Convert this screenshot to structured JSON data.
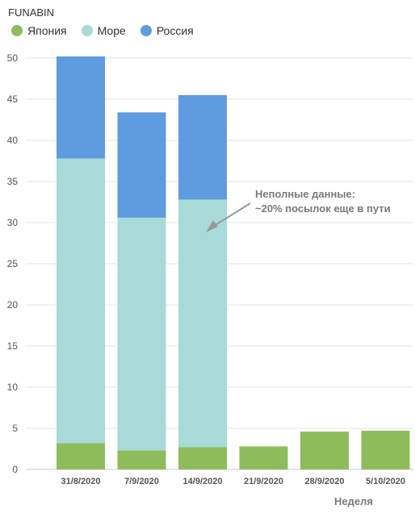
{
  "chart_data": {
    "type": "bar",
    "stacked": true,
    "title": "FUNABIN",
    "xlabel": "Неделя",
    "ylabel": "",
    "ylim": [
      0,
      50
    ],
    "yticks": [
      0,
      5,
      10,
      15,
      20,
      25,
      30,
      35,
      40,
      45,
      50
    ],
    "grid": true,
    "legend_position": "top-left",
    "categories": [
      "31/8/2020",
      "7/9/2020",
      "14/9/2020",
      "21/9/2020",
      "28/9/2020",
      "5/10/2020"
    ],
    "series": [
      {
        "name": "Япония",
        "color": "#8fbc5a",
        "values": [
          3.2,
          2.3,
          2.7,
          2.8,
          4.6,
          4.7
        ]
      },
      {
        "name": "Море",
        "color": "#a8dad8",
        "values": [
          34.6,
          28.3,
          30.1,
          0,
          0,
          0
        ]
      },
      {
        "name": "Россия",
        "color": "#5f9bdf",
        "values": [
          12.4,
          12.8,
          12.7,
          0,
          0,
          0
        ]
      }
    ],
    "annotation": {
      "lines": [
        "Неполные данные:",
        "~20% посылок еще в пути"
      ],
      "target_category": "14/9/2020",
      "arrow_color": "#999999"
    }
  }
}
